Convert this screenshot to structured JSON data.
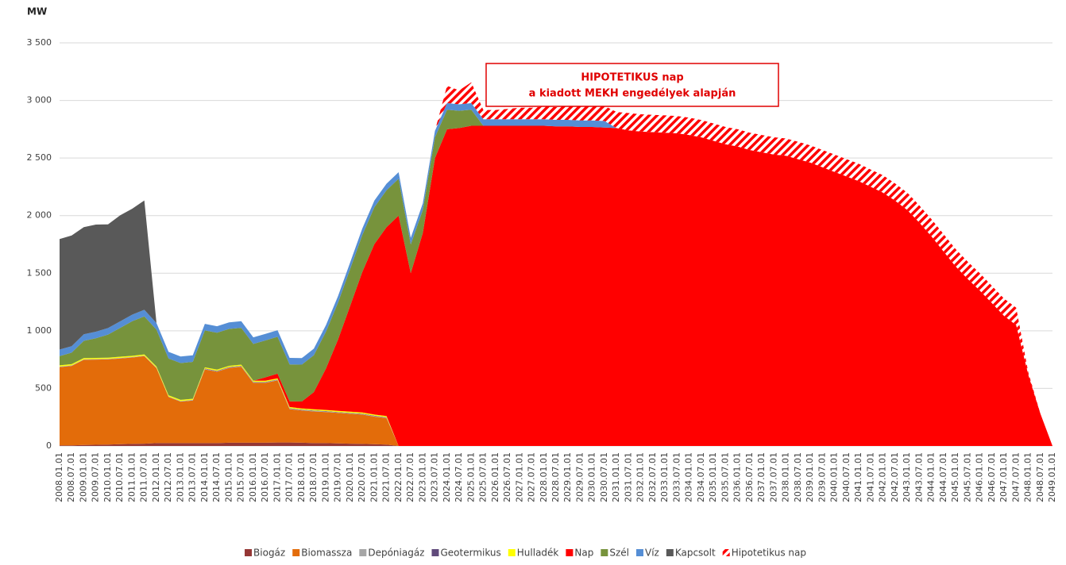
{
  "chart_data": {
    "type": "stacked_area",
    "y_label": "MW",
    "annotation": [
      "HIPOTETIKUS nap",
      "a kiadott MEKH engedélyek alapján"
    ],
    "categories": [
      "2008.01.01",
      "2008.07.01",
      "2009.01.01",
      "2009.07.01",
      "2010.01.01",
      "2010.07.01",
      "2011.01.01",
      "2011.07.01",
      "2012.01.01",
      "2012.07.01",
      "2013.01.01",
      "2013.07.01",
      "2014.01.01",
      "2014.07.01",
      "2015.01.01",
      "2015.07.01",
      "2016.01.01",
      "2016.07.01",
      "2017.01.01",
      "2017.07.01",
      "2018.01.01",
      "2018.07.01",
      "2019.01.01",
      "2019.07.01",
      "2020.01.01",
      "2020.07.01",
      "2021.01.01",
      "2021.07.01",
      "2022.01.01",
      "2022.07.01",
      "2023.01.01",
      "2023.07.01",
      "2024.01.01",
      "2024.07.01",
      "2025.01.01",
      "2025.07.01",
      "2026.01.01",
      "2026.07.01",
      "2027.01.01",
      "2027.07.01",
      "2028.01.01",
      "2028.07.01",
      "2029.01.01",
      "2029.07.01",
      "2030.01.01",
      "2030.07.01",
      "2031.01.01",
      "2031.07.01",
      "2032.01.01",
      "2032.07.01",
      "2033.01.01",
      "2033.07.01",
      "2034.01.01",
      "2034.07.01",
      "2035.01.01",
      "2035.07.01",
      "2036.01.01",
      "2036.07.01",
      "2037.01.01",
      "2037.07.01",
      "2038.01.01",
      "2038.07.01",
      "2039.01.01",
      "2039.07.01",
      "2040.01.01",
      "2040.07.01",
      "2041.01.01",
      "2041.07.01",
      "2042.01.01",
      "2042.07.01",
      "2043.01.01",
      "2043.07.01",
      "2044.01.01",
      "2044.07.01",
      "2045.01.01",
      "2045.07.01",
      "2046.01.01",
      "2046.07.01",
      "2047.01.01",
      "2047.07.01",
      "2048.01.01",
      "2048.07.01",
      "2049.01.01"
    ],
    "series": [
      {
        "name": "Biogáz",
        "color": "#953735",
        "values": [
          5,
          5,
          8,
          10,
          12,
          15,
          18,
          20,
          25,
          25,
          25,
          25,
          25,
          25,
          28,
          28,
          28,
          28,
          30,
          30,
          28,
          25,
          25,
          22,
          20,
          18,
          15,
          12,
          0,
          0,
          0,
          0,
          0,
          0,
          0,
          0,
          0,
          0,
          0,
          0,
          0,
          0,
          0,
          0,
          0,
          0,
          0,
          0,
          0,
          0,
          0,
          0,
          0,
          0,
          0,
          0,
          0,
          0,
          0,
          0,
          0,
          0,
          0,
          0,
          0,
          0,
          0,
          0,
          0,
          0,
          0,
          0,
          0,
          0,
          0,
          0,
          0,
          0,
          0,
          0,
          0,
          0,
          0
        ]
      },
      {
        "name": "Biomassza",
        "color": "#e36c0a",
        "values": [
          680,
          690,
          740,
          740,
          740,
          745,
          750,
          760,
          650,
          400,
          360,
          370,
          640,
          620,
          650,
          660,
          520,
          520,
          540,
          290,
          280,
          275,
          270,
          265,
          260,
          255,
          240,
          230,
          0,
          0,
          0,
          0,
          0,
          0,
          0,
          0,
          0,
          0,
          0,
          0,
          0,
          0,
          0,
          0,
          0,
          0,
          0,
          0,
          0,
          0,
          0,
          0,
          0,
          0,
          0,
          0,
          0,
          0,
          0,
          0,
          0,
          0,
          0,
          0,
          0,
          0,
          0,
          0,
          0,
          0,
          0,
          0,
          0,
          0,
          0,
          0,
          0,
          0,
          0,
          0,
          0,
          0,
          0
        ]
      },
      {
        "name": "Depóniagáz",
        "color": "#a6a6a6",
        "values": [
          5,
          5,
          5,
          5,
          5,
          5,
          5,
          5,
          5,
          5,
          5,
          5,
          5,
          5,
          5,
          5,
          5,
          5,
          5,
          5,
          5,
          5,
          5,
          5,
          5,
          5,
          5,
          5,
          0,
          0,
          0,
          0,
          0,
          0,
          0,
          0,
          0,
          0,
          0,
          0,
          0,
          0,
          0,
          0,
          0,
          0,
          0,
          0,
          0,
          0,
          0,
          0,
          0,
          0,
          0,
          0,
          0,
          0,
          0,
          0,
          0,
          0,
          0,
          0,
          0,
          0,
          0,
          0,
          0,
          0,
          0,
          0,
          0,
          0,
          0,
          0,
          0,
          0,
          0,
          0,
          0,
          0,
          0
        ]
      },
      {
        "name": "Geotermikus",
        "color": "#604a7b",
        "values": [
          0,
          0,
          0,
          0,
          0,
          0,
          0,
          0,
          0,
          0,
          0,
          0,
          3,
          3,
          3,
          3,
          3,
          3,
          3,
          3,
          3,
          3,
          3,
          3,
          3,
          3,
          3,
          3,
          0,
          0,
          0,
          0,
          0,
          0,
          0,
          0,
          0,
          0,
          0,
          0,
          0,
          0,
          0,
          0,
          0,
          0,
          0,
          0,
          0,
          0,
          0,
          0,
          0,
          0,
          0,
          0,
          0,
          0,
          0,
          0,
          0,
          0,
          0,
          0,
          0,
          0,
          0,
          0,
          0,
          0,
          0,
          0,
          0,
          0,
          0,
          0,
          0,
          0,
          0,
          0,
          0,
          0,
          0
        ]
      },
      {
        "name": "Hulladék",
        "color": "#ffff00",
        "values": [
          10,
          10,
          10,
          10,
          10,
          10,
          10,
          10,
          10,
          10,
          10,
          10,
          10,
          10,
          10,
          10,
          10,
          10,
          10,
          10,
          10,
          10,
          10,
          10,
          10,
          10,
          10,
          10,
          0,
          0,
          0,
          0,
          0,
          0,
          0,
          0,
          0,
          0,
          0,
          0,
          0,
          0,
          0,
          0,
          0,
          0,
          0,
          0,
          0,
          0,
          0,
          0,
          0,
          0,
          0,
          0,
          0,
          0,
          0,
          0,
          0,
          0,
          0,
          0,
          0,
          0,
          0,
          0,
          0,
          0,
          0,
          0,
          0,
          0,
          0,
          0,
          0,
          0,
          0,
          0,
          0,
          0,
          0
        ]
      },
      {
        "name": "Nap",
        "color": "#ff0000",
        "values": [
          0,
          0,
          0,
          0,
          0,
          0,
          0,
          0,
          0,
          0,
          0,
          0,
          0,
          0,
          0,
          0,
          0,
          30,
          40,
          50,
          60,
          150,
          360,
          620,
          920,
          1220,
          1480,
          1640,
          2000,
          1500,
          1850,
          2500,
          2750,
          2760,
          2780,
          2780,
          2780,
          2780,
          2780,
          2780,
          2780,
          2775,
          2775,
          2770,
          2770,
          2765,
          2760,
          2740,
          2730,
          2725,
          2720,
          2715,
          2700,
          2680,
          2650,
          2620,
          2600,
          2570,
          2550,
          2530,
          2520,
          2490,
          2460,
          2420,
          2380,
          2340,
          2300,
          2250,
          2200,
          2130,
          2050,
          1940,
          1820,
          1690,
          1560,
          1450,
          1350,
          1240,
          1130,
          1050,
          620,
          280,
          0
        ]
      },
      {
        "name": "Szél",
        "color": "#77933c",
        "values": [
          80,
          100,
          150,
          170,
          200,
          250,
          300,
          330,
          320,
          320,
          320,
          320,
          320,
          320,
          320,
          320,
          320,
          320,
          320,
          320,
          320,
          320,
          320,
          320,
          320,
          320,
          320,
          320,
          320,
          250,
          200,
          180,
          170,
          150,
          140,
          0,
          0,
          0,
          0,
          0,
          0,
          0,
          0,
          0,
          0,
          0,
          0,
          0,
          0,
          0,
          0,
          0,
          0,
          0,
          0,
          0,
          0,
          0,
          0,
          0,
          0,
          0,
          0,
          0,
          0,
          0,
          0,
          0,
          0,
          0,
          0,
          0,
          0,
          0,
          0,
          0,
          0,
          0,
          0,
          0,
          0,
          0,
          0
        ]
      },
      {
        "name": "Víz",
        "color": "#558ed5",
        "values": [
          57,
          57,
          57,
          57,
          57,
          57,
          57,
          57,
          57,
          57,
          57,
          57,
          57,
          57,
          57,
          57,
          57,
          57,
          57,
          57,
          57,
          57,
          57,
          57,
          57,
          57,
          57,
          57,
          57,
          57,
          57,
          57,
          57,
          57,
          57,
          57,
          57,
          57,
          57,
          57,
          57,
          57,
          57,
          57,
          57,
          57,
          0,
          0,
          0,
          0,
          0,
          0,
          0,
          0,
          0,
          0,
          0,
          0,
          0,
          0,
          0,
          0,
          0,
          0,
          0,
          0,
          0,
          0,
          0,
          0,
          0,
          0,
          0,
          0,
          0,
          0,
          0,
          0,
          0,
          0,
          0,
          0,
          0
        ]
      },
      {
        "name": "Kapcsolt",
        "color": "#595959",
        "values": [
          960,
          960,
          930,
          930,
          900,
          920,
          920,
          950,
          0,
          0,
          0,
          0,
          0,
          0,
          0,
          0,
          0,
          0,
          0,
          0,
          0,
          0,
          0,
          0,
          0,
          0,
          0,
          0,
          0,
          0,
          0,
          0,
          0,
          0,
          0,
          0,
          0,
          0,
          0,
          0,
          0,
          0,
          0,
          0,
          0,
          0,
          0,
          0,
          0,
          0,
          0,
          0,
          0,
          0,
          0,
          0,
          0,
          0,
          0,
          0,
          0,
          0,
          0,
          0,
          0,
          0,
          0,
          0,
          0,
          0,
          0,
          0,
          0,
          0,
          0,
          0,
          0,
          0,
          0,
          0,
          0,
          0,
          0
        ]
      },
      {
        "name": "Hipotetikus nap",
        "color": "#ff0000",
        "hatch": true,
        "values": [
          0,
          0,
          0,
          0,
          0,
          0,
          0,
          0,
          0,
          0,
          0,
          0,
          0,
          0,
          0,
          0,
          0,
          0,
          0,
          0,
          0,
          0,
          0,
          0,
          0,
          0,
          0,
          0,
          0,
          0,
          0,
          0,
          150,
          120,
          180,
          80,
          80,
          90,
          100,
          100,
          110,
          110,
          120,
          120,
          120,
          130,
          140,
          150,
          150,
          150,
          150,
          150,
          150,
          150,
          150,
          150,
          150,
          150,
          150,
          150,
          150,
          150,
          150,
          150,
          150,
          150,
          150,
          150,
          150,
          150,
          150,
          150,
          150,
          150,
          150,
          150,
          150,
          150,
          150,
          150,
          20,
          0,
          0
        ]
      }
    ],
    "ylim": [
      0,
      3500
    ],
    "yticks": [
      {
        "value": 0,
        "label": "0"
      },
      {
        "value": 500,
        "label": "500"
      },
      {
        "value": 1000,
        "label": "1 000"
      },
      {
        "value": 1500,
        "label": "1 500"
      },
      {
        "value": 2000,
        "label": "2 000"
      },
      {
        "value": 2500,
        "label": "2 500"
      },
      {
        "value": 3000,
        "label": "3 000"
      },
      {
        "value": 3500,
        "label": "3 500"
      }
    ],
    "grid": true,
    "legend": "bottom"
  }
}
